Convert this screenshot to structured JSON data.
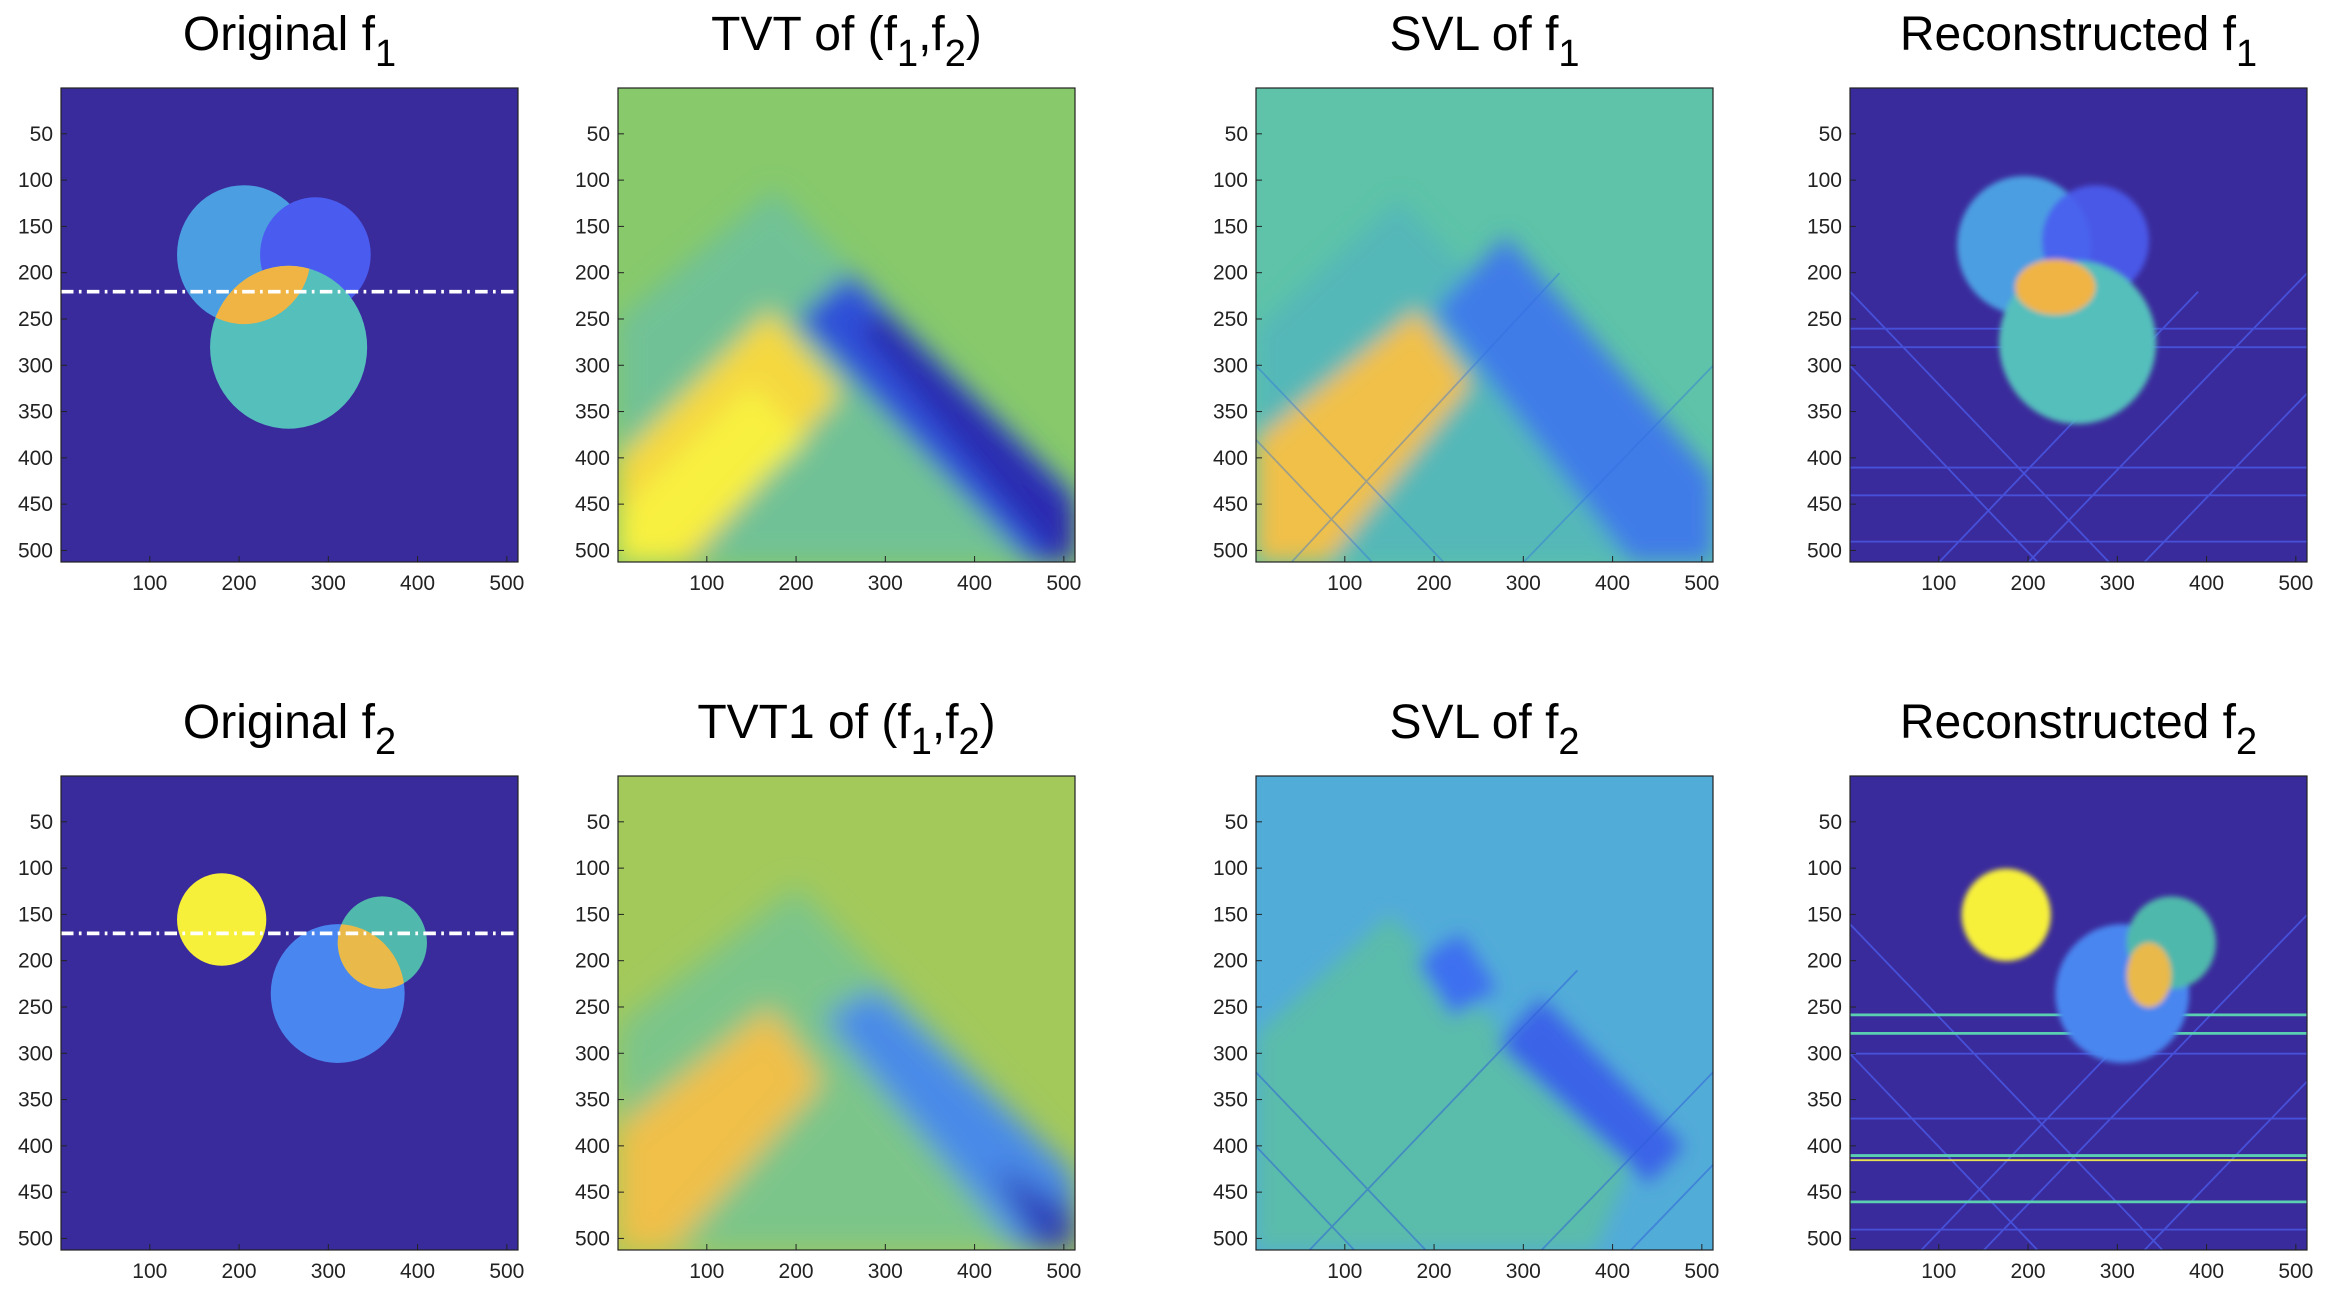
{
  "chart_data": [
    {
      "type": "image",
      "title": [
        {
          "text": "Original f"
        },
        {
          "text": "1",
          "sub": true
        }
      ],
      "xlim": [
        0.5,
        512.5
      ],
      "ylim": [
        0.5,
        512.5
      ],
      "y_reversed": true,
      "xticks": [
        100,
        200,
        300,
        400,
        500
      ],
      "yticks": [
        50,
        100,
        150,
        200,
        250,
        300,
        350,
        400,
        450,
        500
      ]
    },
    {
      "type": "image",
      "title": [
        {
          "text": "TVT of (f"
        },
        {
          "text": "1",
          "sub": true
        },
        {
          "text": ",f"
        },
        {
          "text": "2",
          "sub": true
        },
        {
          "text": ")"
        }
      ],
      "xlim": [
        0.5,
        512.5
      ],
      "ylim": [
        0.5,
        512.5
      ],
      "y_reversed": true,
      "xticks": [
        100,
        200,
        300,
        400,
        500
      ],
      "yticks": [
        50,
        100,
        150,
        200,
        250,
        300,
        350,
        400,
        450,
        500
      ]
    },
    {
      "type": "image",
      "title": [
        {
          "text": "SVL of f"
        },
        {
          "text": "1",
          "sub": true
        }
      ],
      "xlim": [
        0.5,
        512.5
      ],
      "ylim": [
        0.5,
        512.5
      ],
      "y_reversed": true,
      "xticks": [
        100,
        200,
        300,
        400,
        500
      ],
      "yticks": [
        50,
        100,
        150,
        200,
        250,
        300,
        350,
        400,
        450,
        500
      ]
    },
    {
      "type": "image",
      "title": [
        {
          "text": "Reconstructed f"
        },
        {
          "text": "1",
          "sub": true
        }
      ],
      "xlim": [
        0.5,
        512.5
      ],
      "ylim": [
        0.5,
        512.5
      ],
      "y_reversed": true,
      "xticks": [
        100,
        200,
        300,
        400,
        500
      ],
      "yticks": [
        50,
        100,
        150,
        200,
        250,
        300,
        350,
        400,
        450,
        500
      ]
    },
    {
      "type": "image",
      "title": [
        {
          "text": "Original f"
        },
        {
          "text": "2",
          "sub": true
        }
      ],
      "xlim": [
        0.5,
        512.5
      ],
      "ylim": [
        0.5,
        512.5
      ],
      "y_reversed": true,
      "xticks": [
        100,
        200,
        300,
        400,
        500
      ],
      "yticks": [
        50,
        100,
        150,
        200,
        250,
        300,
        350,
        400,
        450,
        500
      ]
    },
    {
      "type": "image",
      "title": [
        {
          "text": "TVT1 of (f"
        },
        {
          "text": "1",
          "sub": true
        },
        {
          "text": ",f"
        },
        {
          "text": "2",
          "sub": true
        },
        {
          "text": ")"
        }
      ],
      "xlim": [
        0.5,
        512.5
      ],
      "ylim": [
        0.5,
        512.5
      ],
      "y_reversed": true,
      "xticks": [
        100,
        200,
        300,
        400,
        500
      ],
      "yticks": [
        50,
        100,
        150,
        200,
        250,
        300,
        350,
        400,
        450,
        500
      ]
    },
    {
      "type": "image",
      "title": [
        {
          "text": "SVL of f"
        },
        {
          "text": "2",
          "sub": true
        }
      ],
      "xlim": [
        0.5,
        512.5
      ],
      "ylim": [
        0.5,
        512.5
      ],
      "y_reversed": true,
      "xticks": [
        100,
        200,
        300,
        400,
        500
      ],
      "yticks": [
        50,
        100,
        150,
        200,
        250,
        300,
        350,
        400,
        450,
        500
      ]
    },
    {
      "type": "image",
      "title": [
        {
          "text": "Reconstructed f"
        },
        {
          "text": "2",
          "sub": true
        }
      ],
      "xlim": [
        0.5,
        512.5
      ],
      "ylim": [
        0.5,
        512.5
      ],
      "y_reversed": true,
      "xticks": [
        100,
        200,
        300,
        400,
        500
      ],
      "yticks": [
        50,
        100,
        150,
        200,
        250,
        300,
        350,
        400,
        450,
        500
      ]
    }
  ]
}
